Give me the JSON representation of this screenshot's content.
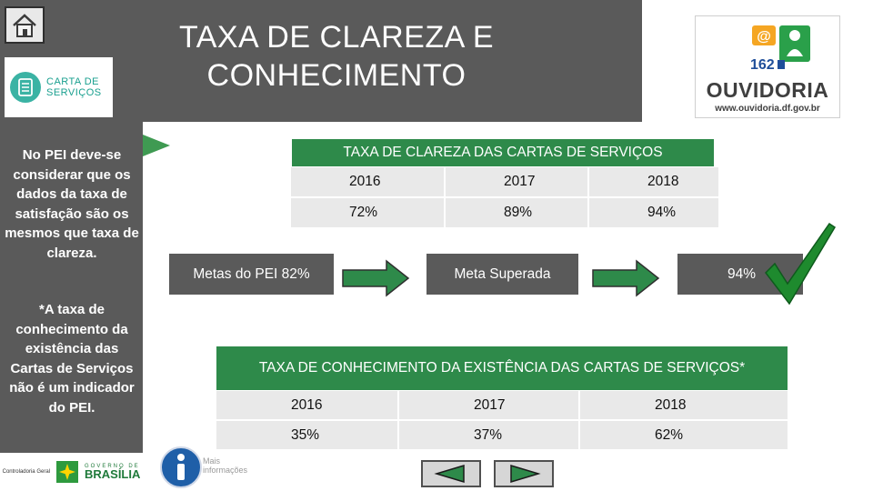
{
  "header": {
    "title_line1": "TAXA DE CLAREZA E",
    "title_line2": "CONHECIMENTO",
    "carta_logo_line1": "CARTA DE",
    "carta_logo_line2": "SERVIÇOS",
    "ouvidoria_brand": "OUVIDORIA",
    "ouvidoria_url": "www.ouvidoria.df.gov.br",
    "ouvidoria_badge_at": "@",
    "ouvidoria_badge_number": "162"
  },
  "sidebar": {
    "note1": "No PEI deve-se considerar que os dados da taxa de satisfação são os mesmos que taxa de clareza.",
    "note2": "*A taxa de conhecimento da existência das Cartas de Serviços não é um indicador do PEI.",
    "footer_org": "Controladoria Geral",
    "footer_gov": "GOVERNO DE",
    "footer_brasilia": "BRASÍLIA"
  },
  "clareza_table": {
    "title": "TAXA DE CLAREZA DAS CARTAS DE SERVIÇOS",
    "years": [
      "2016",
      "2017",
      "2018"
    ],
    "values": [
      "72%",
      "89%",
      "94%"
    ]
  },
  "goals": {
    "meta_pei": "Metas do PEI 82%",
    "meta_superada": "Meta Superada",
    "result": "94%"
  },
  "conhecimento_table": {
    "title": "TAXA DE CONHECIMENTO DA EXISTÊNCIA DAS CARTAS DE SERVIÇOS*",
    "years": [
      "2016",
      "2017",
      "2018"
    ],
    "values": [
      "35%",
      "37%",
      "62%"
    ]
  },
  "info": {
    "label_line1": "Mais",
    "label_line2": "informações"
  },
  "colors": {
    "dark_gray": "#5a5a5a",
    "green": "#2e8a4a",
    "cell_gray": "#e9e9e9"
  }
}
